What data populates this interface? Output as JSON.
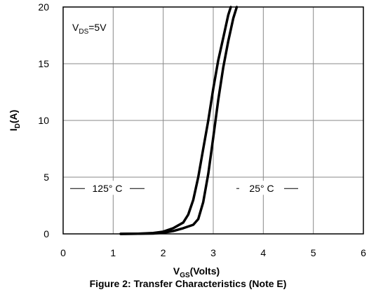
{
  "chart_data": {
    "type": "line",
    "xlabel_main": "V",
    "xlabel_sub": "GS",
    "xlabel_rest": "(Volts)",
    "ylabel_main": "I",
    "ylabel_sub": "D",
    "ylabel_rest": "(A)",
    "caption": "Figure 2: Transfer Characteristics (Note E)",
    "xlim": [
      0,
      6
    ],
    "ylim": [
      0,
      20
    ],
    "x_ticks": [
      0,
      1,
      2,
      3,
      4,
      5,
      6
    ],
    "y_ticks": [
      0,
      5,
      10,
      15,
      20
    ],
    "grid": true,
    "condition": {
      "main": "V",
      "sub": "DS",
      "rest": "=5V"
    },
    "annotations": [
      {
        "text": "125° C",
        "series": "125° C"
      },
      {
        "text": "25° C",
        "series": "25° C"
      }
    ],
    "series": [
      {
        "name": "125° C",
        "x": [
          1.15,
          1.5,
          1.8,
          2.0,
          2.2,
          2.4,
          2.5,
          2.6,
          2.7,
          2.8,
          2.9,
          3.0,
          3.1,
          3.2,
          3.3,
          3.35
        ],
        "y": [
          0,
          0.02,
          0.08,
          0.2,
          0.5,
          1.0,
          1.7,
          3.0,
          5.0,
          7.5,
          10.0,
          12.8,
          15.3,
          17.3,
          19.3,
          20.0
        ]
      },
      {
        "name": "25° C",
        "x": [
          1.15,
          1.5,
          1.8,
          2.0,
          2.2,
          2.4,
          2.6,
          2.7,
          2.8,
          2.9,
          3.0,
          3.1,
          3.2,
          3.3,
          3.4,
          3.47
        ],
        "y": [
          0,
          0.01,
          0.03,
          0.1,
          0.25,
          0.5,
          0.8,
          1.3,
          2.8,
          5.3,
          8.5,
          11.8,
          14.7,
          17.0,
          19.0,
          20.0
        ]
      }
    ]
  }
}
